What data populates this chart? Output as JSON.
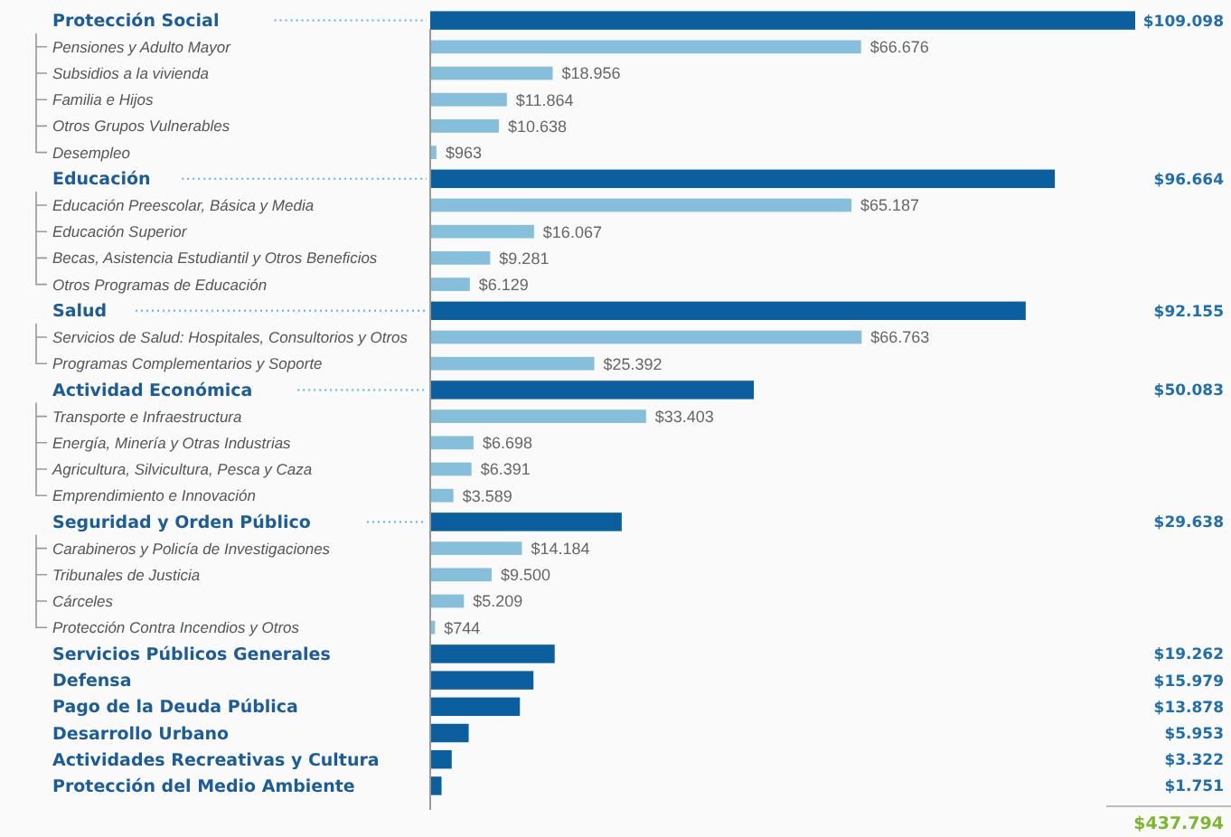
{
  "chart_data": {
    "type": "bar",
    "orientation": "horizontal",
    "tick_labels": "y",
    "categories": [
      "Protección Social",
      "Pensiones y Adulto Mayor",
      "Subsidios a la vivienda",
      "Familia e Hijos",
      "Otros Grupos Vulnerables",
      "Desempleo",
      "Educación",
      "Educación Preescolar, Básica y Media",
      "Educación Superior",
      "Becas, Asistencia Estudiantil y Otros Beneficios",
      "Otros Programas de Educación",
      "Salud",
      "Servicios de Salud: Hospitales, Consultorios y Otros",
      "Programas Complementarios y Soporte",
      "Actividad Económica",
      "Transporte e Infraestructura",
      "Energía, Minería y Otras Industrias",
      "Agricultura, Silvicultura, Pesca y Caza",
      "Emprendimiento e Innovación",
      "Seguridad y Orden Público",
      "Carabineros y Policía de Investigaciones",
      "Tribunales de Justicia",
      "Cárceles",
      "Protección Contra Incendios y Otros",
      "Servicios Públicos Generales",
      "Defensa",
      "Pago de la Deuda Pública",
      "Desarrollo Urbano",
      "Actividades Recreativas y Cultura",
      "Protección del Medio Ambiente"
    ],
    "series": [
      {
        "color": "#0b5f9f",
        "values": [
          109098,
          null,
          null,
          null,
          null,
          null,
          96664,
          null,
          null,
          null,
          null,
          92155,
          null,
          null,
          50083,
          null,
          null,
          null,
          null,
          29638,
          null,
          null,
          null,
          null,
          19262,
          15979,
          13878,
          5953,
          3322,
          1751
        ],
        "value_labels": [
          "$109.098",
          null,
          null,
          null,
          null,
          null,
          "$96.664",
          null,
          null,
          null,
          null,
          "$92.155",
          null,
          null,
          "$50.083",
          null,
          null,
          null,
          null,
          "$29.638",
          null,
          null,
          null,
          null,
          "$19.262",
          "$15.979",
          "$13.878",
          "$5.953",
          "$3.322",
          "$1.751"
        ]
      },
      {
        "color": "#86bfdb",
        "values": [
          null,
          66676,
          18956,
          11864,
          10638,
          963,
          null,
          65187,
          16067,
          9281,
          6129,
          null,
          66763,
          25392,
          null,
          33403,
          6698,
          6391,
          3589,
          null,
          14184,
          9500,
          5209,
          744,
          null,
          null,
          null,
          null,
          null,
          null
        ],
        "value_labels": [
          null,
          "$66.676",
          "$18.956",
          "$11.864",
          "$10.638",
          "$963",
          null,
          "$65.187",
          "$16.067",
          "$9.281",
          "$6.129",
          null,
          "$66.763",
          "$25.392",
          null,
          "$33.403",
          "$6.698",
          "$6.391",
          "$3.589",
          null,
          "$14.184",
          "$9.500",
          "$5.209",
          "$744",
          null,
          null,
          null,
          null,
          null,
          null
        ]
      }
    ],
    "annotations": [
      "$437.794"
    ]
  }
}
